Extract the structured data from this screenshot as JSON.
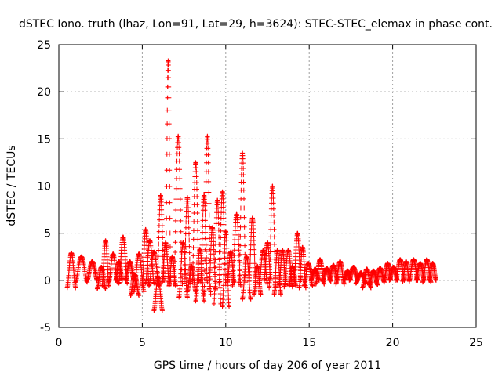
{
  "chart_data": {
    "type": "scatter",
    "title": "dSTEC Iono. truth (lhaz, Lon=91, Lat=29, h=3624): STEC-STEC_elemax in phase cont.",
    "xlabel": "GPS time / hours of day 206 of year 2011",
    "ylabel": "dSTEC  / TECUs",
    "xlim": [
      0,
      25
    ],
    "ylim": [
      -5,
      25
    ],
    "xticks": [
      0,
      5,
      10,
      15,
      20,
      25
    ],
    "yticks": [
      -5,
      0,
      5,
      10,
      15,
      20,
      25
    ],
    "grid": true,
    "marker": "+",
    "color": "#ff0000",
    "arcs": [
      {
        "t0": 0.5,
        "t1": 1.0,
        "min": -0.8,
        "max": 2.9
      },
      {
        "t0": 1.0,
        "t1": 1.7,
        "min": -0.2,
        "max": 2.5
      },
      {
        "t0": 1.7,
        "t1": 2.3,
        "min": 0.0,
        "max": 2.0
      },
      {
        "t0": 2.3,
        "t1": 2.8,
        "min": -0.9,
        "max": 1.4
      },
      {
        "t0": 2.6,
        "t1": 3.0,
        "min": -0.6,
        "max": 4.2
      },
      {
        "t0": 3.0,
        "t1": 3.5,
        "min": -0.2,
        "max": 2.8
      },
      {
        "t0": 3.4,
        "t1": 3.8,
        "min": 0.0,
        "max": 2.0
      },
      {
        "t0": 3.6,
        "t1": 4.1,
        "min": -0.3,
        "max": 4.6
      },
      {
        "t0": 4.0,
        "t1": 4.5,
        "min": 0.0,
        "max": 2.0
      },
      {
        "t0": 4.3,
        "t1": 4.8,
        "min": -1.6,
        "max": 0.6
      },
      {
        "t0": 4.5,
        "t1": 5.1,
        "min": -1.2,
        "max": 2.8
      },
      {
        "t0": 5.0,
        "t1": 5.4,
        "min": -0.5,
        "max": 5.4
      },
      {
        "t0": 5.2,
        "t1": 5.7,
        "min": -0.3,
        "max": 4.2
      },
      {
        "t0": 5.4,
        "t1": 6.0,
        "min": -0.6,
        "max": 3.0
      },
      {
        "t0": 5.7,
        "t1": 6.2,
        "min": -3.2,
        "max": 0.3
      },
      {
        "t0": 5.9,
        "t1": 6.3,
        "min": 0.0,
        "max": 9.0
      },
      {
        "t0": 6.2,
        "t1": 6.6,
        "min": -0.2,
        "max": 4.0
      },
      {
        "t0": 6.4,
        "t1": 6.7,
        "min": 0.0,
        "max": 23.3
      },
      {
        "t0": 6.6,
        "t1": 7.0,
        "min": -0.6,
        "max": 2.5
      },
      {
        "t0": 6.9,
        "t1": 7.4,
        "min": -0.4,
        "max": 15.3
      },
      {
        "t0": 7.2,
        "t1": 7.7,
        "min": -1.8,
        "max": 4.0
      },
      {
        "t0": 7.5,
        "t1": 7.9,
        "min": -0.3,
        "max": 8.8
      },
      {
        "t0": 7.7,
        "t1": 8.2,
        "min": -1.2,
        "max": 1.5
      },
      {
        "t0": 8.0,
        "t1": 8.4,
        "min": -0.1,
        "max": 12.5
      },
      {
        "t0": 8.2,
        "t1": 8.7,
        "min": -2.2,
        "max": 3.3
      },
      {
        "t0": 8.5,
        "t1": 8.9,
        "min": -0.2,
        "max": 9.0
      },
      {
        "t0": 8.7,
        "t1": 9.1,
        "min": -1.5,
        "max": 15.3
      },
      {
        "t0": 9.0,
        "t1": 9.4,
        "min": -1.0,
        "max": 5.6
      },
      {
        "t0": 9.3,
        "t1": 9.7,
        "min": -2.5,
        "max": 8.5
      },
      {
        "t0": 9.6,
        "t1": 10.0,
        "min": -0.4,
        "max": 9.4
      },
      {
        "t0": 9.8,
        "t1": 10.2,
        "min": -2.8,
        "max": 5.2
      },
      {
        "t0": 10.1,
        "t1": 10.5,
        "min": -0.2,
        "max": 3.0
      },
      {
        "t0": 10.4,
        "t1": 10.9,
        "min": -0.6,
        "max": 7.0
      },
      {
        "t0": 10.8,
        "t1": 11.2,
        "min": -0.2,
        "max": 13.5
      },
      {
        "t0": 11.0,
        "t1": 11.5,
        "min": -2.0,
        "max": 2.5
      },
      {
        "t0": 11.4,
        "t1": 11.8,
        "min": -0.1,
        "max": 6.6
      },
      {
        "t0": 11.7,
        "t1": 12.1,
        "min": -1.5,
        "max": 1.5
      },
      {
        "t0": 12.0,
        "t1": 12.5,
        "min": -0.4,
        "max": 3.2
      },
      {
        "t0": 12.3,
        "t1": 12.7,
        "min": 0.0,
        "max": 4.0
      },
      {
        "t0": 12.6,
        "t1": 13.0,
        "min": -0.8,
        "max": 10.0
      },
      {
        "t0": 12.9,
        "t1": 13.3,
        "min": -1.5,
        "max": 3.2
      },
      {
        "t0": 13.2,
        "t1": 13.6,
        "min": -0.5,
        "max": 3.2
      },
      {
        "t0": 13.5,
        "t1": 14.0,
        "min": -0.7,
        "max": 3.2
      },
      {
        "t0": 13.8,
        "t1": 14.2,
        "min": -0.6,
        "max": 1.5
      },
      {
        "t0": 14.1,
        "t1": 14.5,
        "min": 0.0,
        "max": 5.0
      },
      {
        "t0": 14.4,
        "t1": 14.8,
        "min": -0.8,
        "max": 3.5
      },
      {
        "t0": 14.7,
        "t1": 15.2,
        "min": -0.6,
        "max": 1.8
      },
      {
        "t0": 15.1,
        "t1": 15.6,
        "min": 0.0,
        "max": 1.2
      },
      {
        "t0": 15.4,
        "t1": 15.9,
        "min": -0.4,
        "max": 2.2
      },
      {
        "t0": 15.8,
        "t1": 16.3,
        "min": -0.1,
        "max": 1.3
      },
      {
        "t0": 16.2,
        "t1": 16.7,
        "min": 0.0,
        "max": 1.6
      },
      {
        "t0": 16.6,
        "t1": 17.1,
        "min": -0.4,
        "max": 2.0
      },
      {
        "t0": 17.1,
        "t1": 17.5,
        "min": 0.0,
        "max": 1.0
      },
      {
        "t0": 17.4,
        "t1": 17.9,
        "min": 0.0,
        "max": 1.4
      },
      {
        "t0": 17.8,
        "t1": 18.4,
        "min": -0.3,
        "max": 0.8
      },
      {
        "t0": 18.2,
        "t1": 18.7,
        "min": -0.8,
        "max": 1.2
      },
      {
        "t0": 18.6,
        "t1": 19.1,
        "min": -0.5,
        "max": 1.0
      },
      {
        "t0": 19.0,
        "t1": 19.5,
        "min": -0.2,
        "max": 1.3
      },
      {
        "t0": 19.5,
        "t1": 19.9,
        "min": 0.0,
        "max": 1.8
      },
      {
        "t0": 19.8,
        "t1": 20.3,
        "min": 0.0,
        "max": 1.4
      },
      {
        "t0": 20.2,
        "t1": 20.7,
        "min": 0.0,
        "max": 2.2
      },
      {
        "t0": 20.6,
        "t1": 21.0,
        "min": -0.1,
        "max": 2.0
      },
      {
        "t0": 21.0,
        "t1": 21.5,
        "min": 0.0,
        "max": 2.2
      },
      {
        "t0": 21.4,
        "t1": 21.9,
        "min": 0.0,
        "max": 1.8
      },
      {
        "t0": 21.8,
        "t1": 22.3,
        "min": -0.2,
        "max": 2.2
      },
      {
        "t0": 22.2,
        "t1": 22.6,
        "min": 0.0,
        "max": 1.8
      }
    ]
  }
}
